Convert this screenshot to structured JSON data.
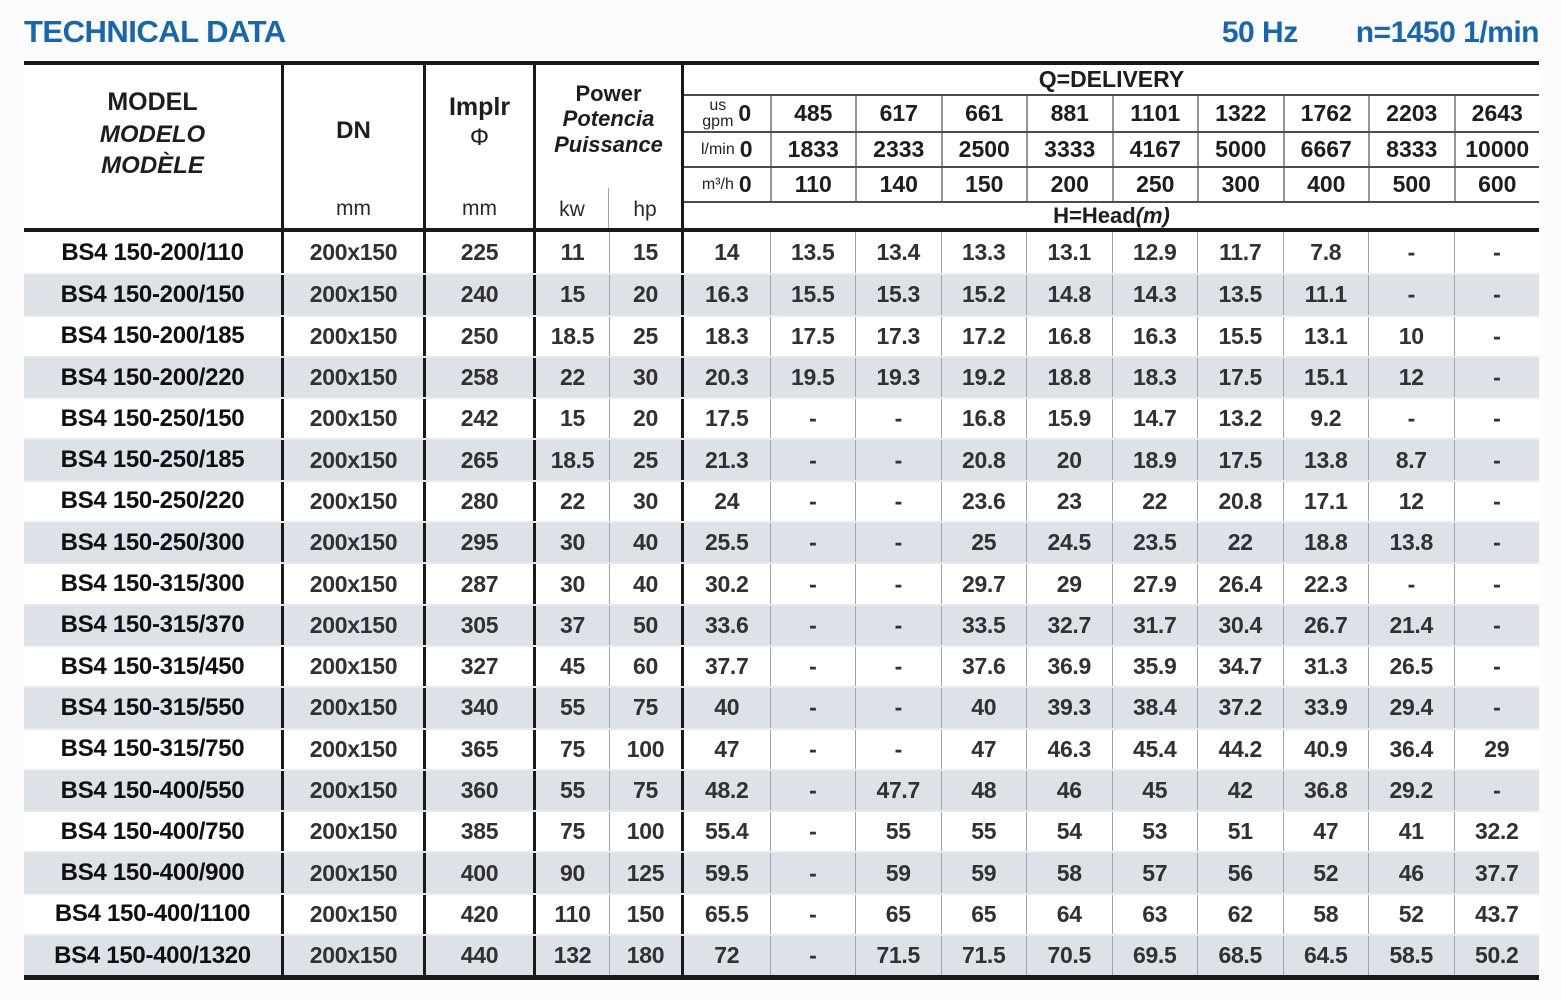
{
  "page": {
    "title": "TECHNICAL DATA",
    "frequency": "50 Hz",
    "speed": "n=1450 1/min",
    "accent_color": "#1766b1",
    "stripe_color": "#dce2e7"
  },
  "table": {
    "header": {
      "model_label": "MODEL",
      "model_label_es": "MODELO",
      "model_label_fr": "MODÈLE",
      "dn_label": "DN",
      "dn_unit": "mm",
      "impeller_label": "Implr",
      "impeller_symbol": "Φ",
      "impeller_unit": "mm",
      "power_label": "Power",
      "power_label_es": "Potencia",
      "power_label_fr": "Puissance",
      "power_unit_kw": "kw",
      "power_unit_hp": "hp",
      "delivery_label": "Q=DELIVERY",
      "head_label": "H=Head",
      "head_unit": "(m)",
      "flow_rows": [
        {
          "unit": "us\ngpm",
          "values": [
            "0",
            "485",
            "617",
            "661",
            "881",
            "1101",
            "1322",
            "1762",
            "2203",
            "2643"
          ]
        },
        {
          "unit": "l/min",
          "values": [
            "0",
            "1833",
            "2333",
            "2500",
            "3333",
            "4167",
            "5000",
            "6667",
            "8333",
            "10000"
          ]
        },
        {
          "unit": "m³/h",
          "values": [
            "0",
            "110",
            "140",
            "150",
            "200",
            "250",
            "300",
            "400",
            "500",
            "600"
          ]
        }
      ]
    },
    "rows": [
      {
        "model": "BS4 150-200/110",
        "dn": "200x150",
        "impeller": "225",
        "kw": "11",
        "hp": "15",
        "head": [
          "14",
          "13.5",
          "13.4",
          "13.3",
          "13.1",
          "12.9",
          "11.7",
          "7.8",
          "-",
          "-"
        ]
      },
      {
        "model": "BS4 150-200/150",
        "dn": "200x150",
        "impeller": "240",
        "kw": "15",
        "hp": "20",
        "head": [
          "16.3",
          "15.5",
          "15.3",
          "15.2",
          "14.8",
          "14.3",
          "13.5",
          "11.1",
          "-",
          "-"
        ]
      },
      {
        "model": "BS4 150-200/185",
        "dn": "200x150",
        "impeller": "250",
        "kw": "18.5",
        "hp": "25",
        "head": [
          "18.3",
          "17.5",
          "17.3",
          "17.2",
          "16.8",
          "16.3",
          "15.5",
          "13.1",
          "10",
          "-"
        ]
      },
      {
        "model": "BS4 150-200/220",
        "dn": "200x150",
        "impeller": "258",
        "kw": "22",
        "hp": "30",
        "head": [
          "20.3",
          "19.5",
          "19.3",
          "19.2",
          "18.8",
          "18.3",
          "17.5",
          "15.1",
          "12",
          "-"
        ]
      },
      {
        "model": "BS4 150-250/150",
        "dn": "200x150",
        "impeller": "242",
        "kw": "15",
        "hp": "20",
        "head": [
          "17.5",
          "-",
          "-",
          "16.8",
          "15.9",
          "14.7",
          "13.2",
          "9.2",
          "-",
          "-"
        ]
      },
      {
        "model": "BS4 150-250/185",
        "dn": "200x150",
        "impeller": "265",
        "kw": "18.5",
        "hp": "25",
        "head": [
          "21.3",
          "-",
          "-",
          "20.8",
          "20",
          "18.9",
          "17.5",
          "13.8",
          "8.7",
          "-"
        ]
      },
      {
        "model": "BS4 150-250/220",
        "dn": "200x150",
        "impeller": "280",
        "kw": "22",
        "hp": "30",
        "head": [
          "24",
          "-",
          "-",
          "23.6",
          "23",
          "22",
          "20.8",
          "17.1",
          "12",
          "-"
        ]
      },
      {
        "model": "BS4 150-250/300",
        "dn": "200x150",
        "impeller": "295",
        "kw": "30",
        "hp": "40",
        "head": [
          "25.5",
          "-",
          "-",
          "25",
          "24.5",
          "23.5",
          "22",
          "18.8",
          "13.8",
          "-"
        ]
      },
      {
        "model": "BS4 150-315/300",
        "dn": "200x150",
        "impeller": "287",
        "kw": "30",
        "hp": "40",
        "head": [
          "30.2",
          "-",
          "-",
          "29.7",
          "29",
          "27.9",
          "26.4",
          "22.3",
          "-",
          "-"
        ]
      },
      {
        "model": "BS4 150-315/370",
        "dn": "200x150",
        "impeller": "305",
        "kw": "37",
        "hp": "50",
        "head": [
          "33.6",
          "-",
          "-",
          "33.5",
          "32.7",
          "31.7",
          "30.4",
          "26.7",
          "21.4",
          "-"
        ]
      },
      {
        "model": "BS4 150-315/450",
        "dn": "200x150",
        "impeller": "327",
        "kw": "45",
        "hp": "60",
        "head": [
          "37.7",
          "-",
          "-",
          "37.6",
          "36.9",
          "35.9",
          "34.7",
          "31.3",
          "26.5",
          "-"
        ]
      },
      {
        "model": "BS4 150-315/550",
        "dn": "200x150",
        "impeller": "340",
        "kw": "55",
        "hp": "75",
        "head": [
          "40",
          "-",
          "-",
          "40",
          "39.3",
          "38.4",
          "37.2",
          "33.9",
          "29.4",
          "-"
        ]
      },
      {
        "model": "BS4 150-315/750",
        "dn": "200x150",
        "impeller": "365",
        "kw": "75",
        "hp": "100",
        "head": [
          "47",
          "-",
          "-",
          "47",
          "46.3",
          "45.4",
          "44.2",
          "40.9",
          "36.4",
          "29"
        ]
      },
      {
        "model": "BS4 150-400/550",
        "dn": "200x150",
        "impeller": "360",
        "kw": "55",
        "hp": "75",
        "head": [
          "48.2",
          "-",
          "47.7",
          "48",
          "46",
          "45",
          "42",
          "36.8",
          "29.2",
          "-"
        ]
      },
      {
        "model": "BS4 150-400/750",
        "dn": "200x150",
        "impeller": "385",
        "kw": "75",
        "hp": "100",
        "head": [
          "55.4",
          "-",
          "55",
          "55",
          "54",
          "53",
          "51",
          "47",
          "41",
          "32.2"
        ]
      },
      {
        "model": "BS4 150-400/900",
        "dn": "200x150",
        "impeller": "400",
        "kw": "90",
        "hp": "125",
        "head": [
          "59.5",
          "-",
          "59",
          "59",
          "58",
          "57",
          "56",
          "52",
          "46",
          "37.7"
        ]
      },
      {
        "model": "BS4 150-400/1100",
        "dn": "200x150",
        "impeller": "420",
        "kw": "110",
        "hp": "150",
        "head": [
          "65.5",
          "-",
          "65",
          "65",
          "64",
          "63",
          "62",
          "58",
          "52",
          "43.7"
        ]
      },
      {
        "model": "BS4 150-400/1320",
        "dn": "200x150",
        "impeller": "440",
        "kw": "132",
        "hp": "180",
        "head": [
          "72",
          "-",
          "71.5",
          "71.5",
          "70.5",
          "69.5",
          "68.5",
          "64.5",
          "58.5",
          "50.2"
        ]
      }
    ]
  }
}
